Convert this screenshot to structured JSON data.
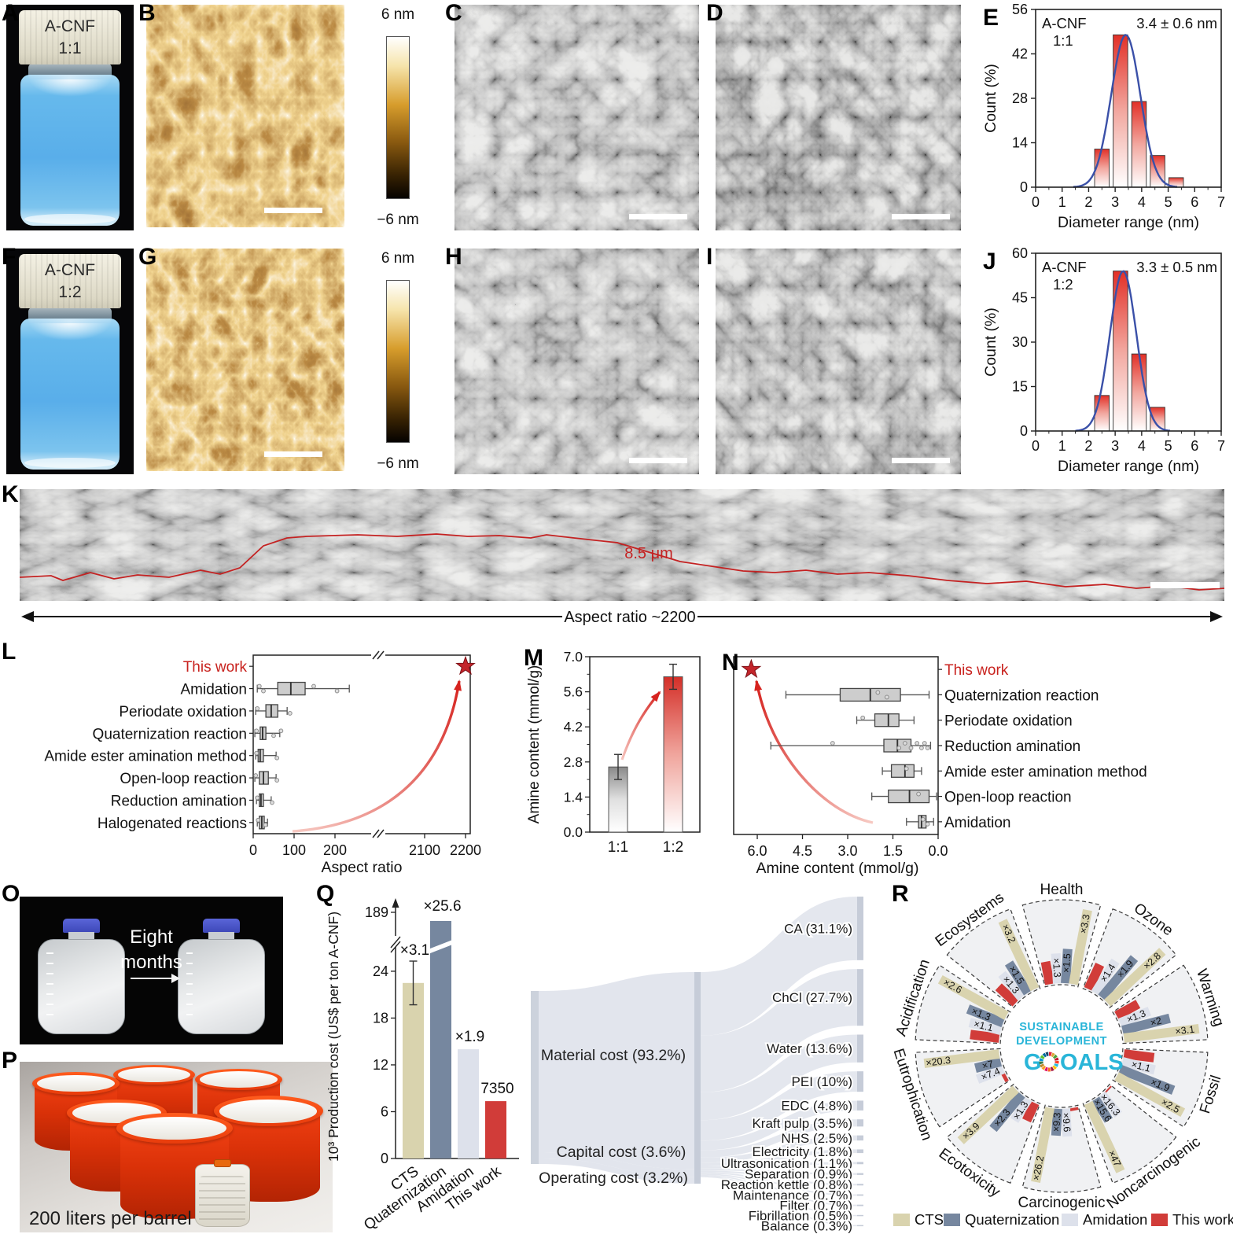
{
  "figure": {
    "panels": {
      "A": "A",
      "B": "B",
      "C": "C",
      "D": "D",
      "E": "E",
      "F": "F",
      "G": "G",
      "H": "H",
      "I": "I",
      "J": "J",
      "K": "K",
      "L": "L",
      "M": "M",
      "N": "N",
      "O": "O",
      "P": "P",
      "Q": "Q",
      "R": "R"
    },
    "vial_1": {
      "line1": "A-CNF",
      "line2": "1:1"
    },
    "vial_2": {
      "line1": "A-CNF",
      "line2": "1:2"
    },
    "colorbar": {
      "top": "6 nm",
      "bottom": "−6 nm"
    },
    "panel_K": {
      "trace_length": "8.5 μm",
      "caption": "Aspect ratio ~2200"
    },
    "panel_O": {
      "caption_line1": "Eight",
      "caption_line2": "months"
    },
    "panel_P": {
      "caption": "200 liters per barrel"
    }
  },
  "chart_data": [
    {
      "id": "hist_E",
      "type": "bar",
      "subtype": "histogram",
      "title": "A-CNF",
      "title2": "1:1",
      "annotation": "3.4 ± 0.6 nm",
      "xlabel": "Diameter range (nm)",
      "ylabel": "Count (%)",
      "xlim": [
        0,
        7
      ],
      "ylim": [
        0,
        56
      ],
      "yticks": [
        0,
        14,
        28,
        42,
        56
      ],
      "xticks": [
        0,
        1,
        2,
        3,
        4,
        5,
        6,
        7
      ],
      "bin_width": 0.55,
      "bin_centers": [
        2.5,
        3.2,
        3.9,
        4.6,
        5.3
      ],
      "values": [
        12,
        48,
        27,
        10,
        3
      ],
      "fit_curve": {
        "mean": 3.4,
        "sd": 0.55,
        "peak": 48,
        "color": "#3a50a8"
      }
    },
    {
      "id": "hist_J",
      "type": "bar",
      "subtype": "histogram",
      "title": "A-CNF",
      "title2": "1:2",
      "annotation": "3.3 ± 0.5 nm",
      "xlabel": "Diameter range (nm)",
      "ylabel": "Count (%)",
      "xlim": [
        0,
        7
      ],
      "ylim": [
        0,
        60
      ],
      "yticks": [
        0,
        15,
        30,
        45,
        60
      ],
      "xticks": [
        0,
        1,
        2,
        3,
        4,
        5,
        6,
        7
      ],
      "bin_width": 0.55,
      "bin_centers": [
        2.5,
        3.2,
        3.9,
        4.6
      ],
      "values": [
        12,
        54,
        26,
        8
      ],
      "fit_curve": {
        "mean": 3.3,
        "sd": 0.5,
        "peak": 54,
        "color": "#3a50a8"
      }
    },
    {
      "id": "box_L",
      "type": "box",
      "orientation": "horizontal",
      "xlabel": "Aspect ratio",
      "highlight": {
        "label": "This work",
        "value": 2200
      },
      "axis": {
        "break": true,
        "ticks_before_break": [
          0,
          100,
          200
        ],
        "ticks_after_break": [
          2100,
          2200
        ]
      },
      "rows": [
        {
          "label": "Amidation",
          "low": 10,
          "q1": 60,
          "median": 92,
          "q3": 127,
          "high": 235,
          "points": [
            15,
            25,
            148,
            205
          ]
        },
        {
          "label": "Periodate oxidation",
          "low": 6,
          "q1": 31,
          "median": 44,
          "q3": 60,
          "high": 83,
          "points": [
            10,
            90
          ]
        },
        {
          "label": "Quaternization reaction",
          "low": 4,
          "q1": 17,
          "median": 23,
          "q3": 31,
          "high": 65,
          "points": [
            8,
            50,
            68
          ]
        },
        {
          "label": "Amide ester amination method",
          "low": 6,
          "q1": 12,
          "median": 17,
          "q3": 25,
          "high": 56,
          "points": [
            8,
            58
          ]
        },
        {
          "label": "Open-loop reaction",
          "low": 4,
          "q1": 15,
          "median": 25,
          "q3": 37,
          "high": 56,
          "points": [
            6,
            58
          ]
        },
        {
          "label": "Reduction amination",
          "low": 8,
          "q1": 15,
          "median": 19,
          "q3": 25,
          "high": 44,
          "points": [
            10,
            46
          ]
        },
        {
          "label": "Halogenated reactions",
          "low": 10,
          "q1": 15,
          "median": 21,
          "q3": 27,
          "high": 35,
          "points": [
            12,
            30
          ]
        }
      ]
    },
    {
      "id": "bar_M",
      "type": "bar",
      "ylabel": "Amine content (mmol/g)",
      "categories": [
        "1:1",
        "1:2"
      ],
      "values": [
        2.6,
        6.2
      ],
      "errors": [
        0.5,
        0.5
      ],
      "ylim": [
        0,
        7
      ],
      "yticks": [
        0,
        1.4,
        2.8,
        4.2,
        5.6,
        7
      ]
    },
    {
      "id": "box_N",
      "type": "box",
      "orientation": "horizontal-reversed",
      "xlabel": "Amine content (mmol/g)",
      "highlight": {
        "label": "This work",
        "value": 6.2
      },
      "axis": {
        "ticks": [
          6,
          4.5,
          3,
          1.5,
          0
        ]
      },
      "rows": [
        {
          "label": "Quaternization reaction",
          "low": 0.3,
          "q1": 1.25,
          "median": 2.25,
          "q3": 3.25,
          "high": 5.05,
          "points": [
            2.0,
            1.7
          ]
        },
        {
          "label": "Periodate oxidation",
          "low": 0.8,
          "q1": 1.3,
          "median": 1.65,
          "q3": 2.1,
          "high": 2.7,
          "points": [
            2.5
          ]
        },
        {
          "label": "Reduction amination",
          "low": 0.25,
          "q1": 0.9,
          "median": 1.35,
          "q3": 1.8,
          "high": 5.55,
          "points": [
            3.5,
            1.3,
            1.1,
            0.9,
            0.7,
            0.55,
            0.45,
            0.35
          ]
        },
        {
          "label": "Amide ester amination method",
          "low": 0.55,
          "q1": 0.8,
          "median": 1.1,
          "q3": 1.55,
          "high": 1.85,
          "points": [
            1.05
          ]
        },
        {
          "label": "Open-loop reaction",
          "low": 0.05,
          "q1": 0.3,
          "median": 0.95,
          "q3": 1.65,
          "high": 2.2,
          "points": [
            0.65
          ]
        },
        {
          "label": "Amidation",
          "low": 0.15,
          "q1": 0.4,
          "median": 0.55,
          "q3": 0.65,
          "high": 1.05,
          "points": [
            0.5,
            0.35
          ]
        }
      ]
    },
    {
      "id": "bar_Q",
      "type": "bar",
      "ylabel": "10³ Production cost (US$ per ton A-CNF)",
      "categories": [
        "CTS",
        "Quaternization",
        "Amidation",
        "This work"
      ],
      "values": [
        22.5,
        189,
        14,
        7.35
      ],
      "value_labels": [
        "×3.1",
        "×25.6",
        "×1.9",
        "7350"
      ],
      "errors": [
        2.8,
        null,
        null,
        null
      ],
      "yticks": [
        0,
        6,
        12,
        18,
        24
      ],
      "extra_tick": 189,
      "axis_break": true,
      "colors": [
        "#d9d3ae",
        "#76879f",
        "#dde1eb",
        "#d13c39"
      ]
    },
    {
      "id": "sankey_Q",
      "type": "sankey",
      "flow_color": "#dfe3eb",
      "node_color": "#c6ccd8",
      "left_nodes": [
        {
          "label": "Material cost (93.2%)",
          "value": 93.2
        },
        {
          "label": "Capital cost (3.6%)",
          "value": 3.6
        },
        {
          "label": "Operating cost (3.2%)",
          "value": 3.2
        }
      ],
      "right_nodes": [
        {
          "label": "CA (31.1%)",
          "value": 31.1
        },
        {
          "label": "ChCl (27.7%)",
          "value": 27.7
        },
        {
          "label": "Water (13.6%)",
          "value": 13.6
        },
        {
          "label": "PEI (10%)",
          "value": 10
        },
        {
          "label": "EDC (4.8%)",
          "value": 4.8
        },
        {
          "label": "Kraft pulp (3.5%)",
          "value": 3.5
        },
        {
          "label": "NHS (2.5%)",
          "value": 2.5
        },
        {
          "label": "Electricity (1.8%)",
          "value": 1.8
        },
        {
          "label": "Ultrasonication (1.1%)",
          "value": 1.1
        },
        {
          "label": "Separation (0.9%)",
          "value": 0.9
        },
        {
          "label": "Reaction kettle (0.8%)",
          "value": 0.8
        },
        {
          "label": "Maintenance (0.7%)",
          "value": 0.7
        },
        {
          "label": "Filter (0.7%)",
          "value": 0.7
        },
        {
          "label": "Fibrillation (0.5%)",
          "value": 0.5
        },
        {
          "label": "Balance (0.3%)",
          "value": 0.3
        }
      ]
    },
    {
      "id": "radial_R",
      "type": "radial-bar",
      "reference_series": "This work",
      "center_text": [
        "SUSTAINABLE",
        "DEVELOPMENT",
        "GOALS"
      ],
      "colors": {
        "CTS": "#d9d3ae",
        "Quaternization": "#76879f",
        "Amidation": "#dde1eb",
        "This work": "#d13c39"
      },
      "sectors": [
        {
          "name": "Health",
          "CTS": 3.3,
          "Quaternization": 1.5,
          "Amidation": 1.3
        },
        {
          "name": "Ozone",
          "CTS": 2.8,
          "Quaternization": 1.9,
          "Amidation": 1.4
        },
        {
          "name": "Warming",
          "CTS": 3.1,
          "Quaternization": 2,
          "Amidation": 1.3
        },
        {
          "name": "Fossil",
          "CTS": 2.5,
          "Quaternization": 1.9,
          "Amidation": 1.1
        },
        {
          "name": "Noncarcinogenic",
          "CTS": 47,
          "Quaternization": 15.6,
          "Amidation": 16.3
        },
        {
          "name": "Carcinogenic",
          "CTS": 26.2,
          "Quaternization": 9.3,
          "Amidation": 9.6
        },
        {
          "name": "Ecotoxicity",
          "CTS": 3.9,
          "Quaternization": 2.3,
          "Amidation": 1.3
        },
        {
          "name": "Eutrophication",
          "CTS": 20.3,
          "Quaternization": 7,
          "Amidation": 7.4
        },
        {
          "name": "Acidification",
          "CTS": 2.6,
          "Quaternization": 1.3,
          "Amidation": 1.1
        },
        {
          "name": "Ecosystems",
          "CTS": 3.2,
          "Quaternization": 1.5,
          "Amidation": 1.3
        }
      ],
      "legend": [
        "CTS",
        "Quaternization",
        "Amidation",
        "This work"
      ]
    }
  ]
}
